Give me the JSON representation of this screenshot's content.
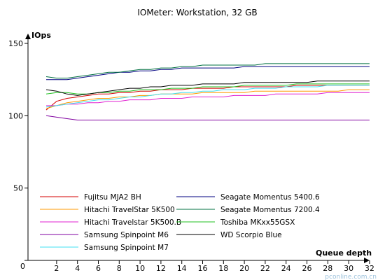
{
  "chart_data": {
    "type": "line",
    "title": "IOMeter: Workstation, 32 GB",
    "ylabel": "IOps",
    "xlabel": "Queue depth",
    "x": [
      1,
      2,
      3,
      4,
      5,
      6,
      7,
      8,
      9,
      10,
      11,
      12,
      13,
      14,
      15,
      16,
      17,
      18,
      19,
      20,
      21,
      22,
      23,
      24,
      25,
      26,
      27,
      28,
      29,
      30,
      31,
      32
    ],
    "xticks": [
      "2",
      "4",
      "6",
      "8",
      "10",
      "12",
      "14",
      "16",
      "18",
      "20",
      "22",
      "24",
      "26",
      "28",
      "30",
      "32"
    ],
    "yticks": [
      "0",
      "50",
      "100",
      "150"
    ],
    "ylim": [
      0,
      150
    ],
    "grid": false,
    "legend_position": "bottom",
    "series": [
      {
        "name": "Fujitsu MJA2 BH",
        "color": "#d40000",
        "values": [
          104,
          110,
          112,
          113,
          114,
          115,
          115,
          116,
          116,
          117,
          117,
          118,
          118,
          118,
          119,
          119,
          119,
          119,
          120,
          120,
          120,
          120,
          120,
          120,
          121,
          121,
          121,
          121,
          121,
          121,
          121,
          121
        ]
      },
      {
        "name": "Hitachi TravelStar 5K500",
        "color": "#ff9900",
        "values": [
          105,
          107,
          109,
          110,
          111,
          112,
          112,
          113,
          113,
          114,
          114,
          115,
          115,
          115,
          115,
          116,
          116,
          116,
          116,
          116,
          117,
          117,
          117,
          117,
          117,
          117,
          117,
          117,
          117,
          118,
          118,
          118
        ]
      },
      {
        "name": "Hitachi Travelstar 5K500.B",
        "color": "#e020d0",
        "values": [
          107,
          107,
          108,
          108,
          109,
          109,
          110,
          110,
          111,
          111,
          111,
          112,
          112,
          112,
          113,
          113,
          113,
          113,
          114,
          114,
          114,
          114,
          115,
          115,
          115,
          115,
          115,
          116,
          116,
          116,
          116,
          116
        ]
      },
      {
        "name": "Samsung Spinpoint M6",
        "color": "#8000a0",
        "values": [
          100,
          99,
          98,
          97,
          97,
          97,
          97,
          97,
          97,
          97,
          97,
          97,
          97,
          97,
          97,
          97,
          97,
          97,
          97,
          97,
          97,
          97,
          97,
          97,
          97,
          97,
          97,
          97,
          97,
          97,
          97,
          97
        ]
      },
      {
        "name": "Samsung Spinpoint M7",
        "color": "#40e0f0",
        "values": [
          106,
          107,
          108,
          109,
          110,
          111,
          111,
          112,
          113,
          113,
          114,
          115,
          115,
          116,
          116,
          117,
          117,
          118,
          118,
          118,
          119,
          119,
          119,
          120,
          120,
          120,
          120,
          121,
          121,
          121,
          121,
          121
        ]
      },
      {
        "name": "Seagate Momentus 5400.6",
        "color": "#000080",
        "values": [
          125,
          125,
          125,
          126,
          127,
          128,
          129,
          130,
          130,
          131,
          131,
          132,
          132,
          133,
          133,
          133,
          133,
          133,
          133,
          134,
          134,
          134,
          134,
          134,
          134,
          134,
          134,
          134,
          134,
          134,
          134,
          134
        ]
      },
      {
        "name": "Seagate Momentus 7200.4",
        "color": "#007040",
        "values": [
          127,
          126,
          126,
          127,
          128,
          129,
          130,
          130,
          131,
          132,
          132,
          133,
          133,
          134,
          134,
          135,
          135,
          135,
          135,
          135,
          135,
          136,
          136,
          136,
          136,
          136,
          136,
          136,
          136,
          136,
          136,
          136
        ]
      },
      {
        "name": "Toshiba MKxx55GSX",
        "color": "#20c020",
        "values": [
          115,
          116,
          116,
          115,
          115,
          116,
          116,
          117,
          117,
          118,
          118,
          118,
          119,
          119,
          119,
          120,
          120,
          120,
          120,
          121,
          121,
          121,
          121,
          121,
          122,
          122,
          122,
          122,
          122,
          122,
          122,
          122
        ]
      },
      {
        "name": "WD Scorpio Blue",
        "color": "#000000",
        "values": [
          118,
          117,
          115,
          114,
          115,
          116,
          117,
          118,
          119,
          119,
          120,
          120,
          121,
          121,
          121,
          122,
          122,
          122,
          122,
          123,
          123,
          123,
          123,
          123,
          123,
          123,
          124,
          124,
          124,
          124,
          124,
          124
        ]
      }
    ]
  },
  "watermark": "pconline.com.cn"
}
